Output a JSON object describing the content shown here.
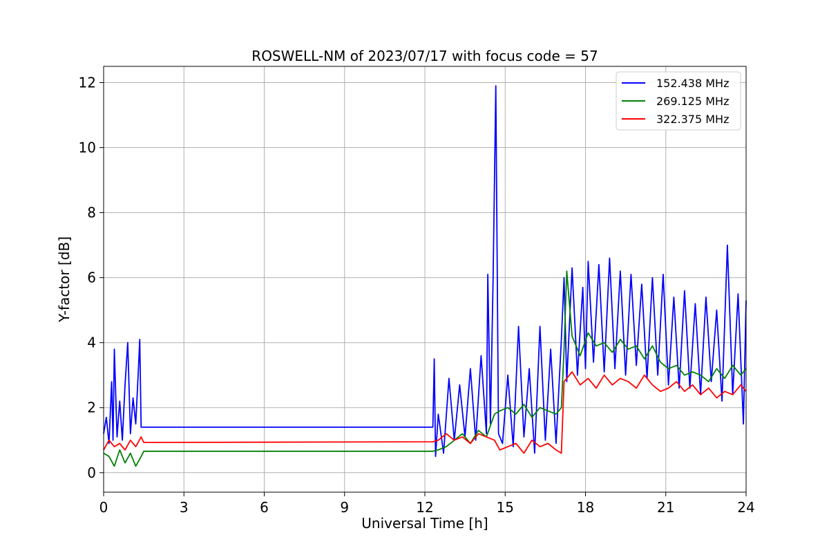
{
  "chart_data": {
    "type": "line",
    "title": "ROSWELL-NM of 2023/07/17 with focus code = 57",
    "xlabel": "Universal Time [h]",
    "ylabel": "Y-factor [dB]",
    "xlim": [
      0,
      24
    ],
    "ylim": [
      -0.6,
      12.5
    ],
    "xticks": [
      0,
      3,
      6,
      9,
      12,
      15,
      18,
      21,
      24
    ],
    "yticks": [
      0,
      2,
      4,
      6,
      8,
      10,
      12
    ],
    "grid": true,
    "legend_position": "top-right",
    "series": [
      {
        "name": "152.438 MHz",
        "color": "#0000ff",
        "x": [
          0,
          0.1,
          0.2,
          0.3,
          0.35,
          0.4,
          0.5,
          0.6,
          0.7,
          0.8,
          0.9,
          1.0,
          1.1,
          1.2,
          1.3,
          1.35,
          1.4,
          1.5,
          12.3,
          12.35,
          12.4,
          12.5,
          12.7,
          12.9,
          13.1,
          13.3,
          13.5,
          13.7,
          13.9,
          14.1,
          14.3,
          14.35,
          14.45,
          14.55,
          14.65,
          14.75,
          14.9,
          15.1,
          15.3,
          15.5,
          15.7,
          15.9,
          16.1,
          16.3,
          16.5,
          16.7,
          16.9,
          17.1,
          17.2,
          17.3,
          17.5,
          17.7,
          17.9,
          18.0,
          18.1,
          18.3,
          18.5,
          18.7,
          18.9,
          19.1,
          19.3,
          19.5,
          19.7,
          19.9,
          20.1,
          20.3,
          20.5,
          20.7,
          20.9,
          21.1,
          21.3,
          21.5,
          21.7,
          21.9,
          22.1,
          22.3,
          22.5,
          22.7,
          22.9,
          23.1,
          23.3,
          23.5,
          23.7,
          23.9,
          24.0
        ],
        "y": [
          1.2,
          1.7,
          0.9,
          2.8,
          1.0,
          3.8,
          1.1,
          2.2,
          1.0,
          2.7,
          4.0,
          1.2,
          2.3,
          1.5,
          3.2,
          4.1,
          1.4,
          1.4,
          1.4,
          3.5,
          0.5,
          1.8,
          0.6,
          2.9,
          1.0,
          2.7,
          1.1,
          3.2,
          1.0,
          3.6,
          1.2,
          6.1,
          1.5,
          6.0,
          11.9,
          1.2,
          0.9,
          3.0,
          0.8,
          4.5,
          1.1,
          3.2,
          0.6,
          4.5,
          1.0,
          3.8,
          0.9,
          4.1,
          6.0,
          2.8,
          6.3,
          3.0,
          5.7,
          3.2,
          6.5,
          3.4,
          6.4,
          3.1,
          6.6,
          3.2,
          6.2,
          3.0,
          6.1,
          3.3,
          5.8,
          2.9,
          6.0,
          3.0,
          6.1,
          2.7,
          5.4,
          2.6,
          5.6,
          2.6,
          5.2,
          2.4,
          5.4,
          2.8,
          5.0,
          2.2,
          7.0,
          2.4,
          5.5,
          1.5,
          5.3
        ]
      },
      {
        "name": "269.125 MHz",
        "color": "#008000",
        "x": [
          0,
          0.2,
          0.4,
          0.6,
          0.8,
          1.0,
          1.2,
          1.4,
          1.5,
          12.3,
          12.5,
          12.8,
          13.1,
          13.4,
          13.7,
          14.0,
          14.3,
          14.6,
          14.8,
          15.1,
          15.4,
          15.7,
          16.0,
          16.3,
          16.6,
          16.9,
          17.1,
          17.2,
          17.3,
          17.5,
          17.8,
          18.1,
          18.4,
          18.7,
          19.0,
          19.3,
          19.6,
          19.9,
          20.2,
          20.5,
          20.8,
          21.1,
          21.4,
          21.7,
          22.0,
          22.3,
          22.6,
          22.9,
          23.2,
          23.5,
          23.8,
          24.0
        ],
        "y": [
          0.6,
          0.5,
          0.2,
          0.7,
          0.3,
          0.6,
          0.2,
          0.5,
          0.66,
          0.66,
          0.7,
          0.8,
          1.0,
          1.2,
          0.9,
          1.3,
          1.1,
          1.8,
          1.9,
          2.0,
          1.8,
          2.1,
          1.7,
          2.0,
          1.9,
          1.8,
          2.0,
          3.8,
          6.2,
          4.2,
          3.6,
          4.3,
          3.9,
          4.0,
          3.7,
          4.1,
          3.8,
          3.9,
          3.5,
          3.9,
          3.4,
          3.2,
          3.3,
          3.0,
          3.1,
          3.0,
          2.8,
          3.2,
          2.9,
          3.3,
          3.0,
          3.2
        ]
      },
      {
        "name": "322.375 MHz",
        "color": "#ff0000",
        "x": [
          0,
          0.2,
          0.4,
          0.6,
          0.8,
          1.0,
          1.2,
          1.4,
          1.5,
          12.3,
          12.5,
          12.8,
          13.1,
          13.4,
          13.7,
          14.0,
          14.3,
          14.6,
          14.8,
          15.1,
          15.4,
          15.7,
          16.0,
          16.3,
          16.6,
          16.9,
          17.1,
          17.2,
          17.5,
          17.8,
          18.1,
          18.4,
          18.7,
          19.0,
          19.3,
          19.6,
          19.9,
          20.2,
          20.5,
          20.8,
          21.1,
          21.4,
          21.7,
          22.0,
          22.3,
          22.6,
          22.9,
          23.2,
          23.5,
          23.8,
          24.0
        ],
        "y": [
          0.7,
          1.0,
          0.8,
          0.9,
          0.7,
          1.0,
          0.8,
          1.1,
          0.93,
          0.95,
          1.0,
          1.2,
          1.0,
          1.1,
          0.9,
          1.2,
          1.1,
          1.0,
          0.7,
          0.8,
          0.9,
          0.6,
          1.0,
          0.8,
          0.9,
          0.7,
          0.6,
          2.8,
          3.1,
          2.7,
          2.9,
          2.6,
          3.0,
          2.7,
          2.9,
          2.8,
          2.6,
          3.0,
          2.7,
          2.5,
          2.6,
          2.8,
          2.5,
          2.7,
          2.4,
          2.6,
          2.3,
          2.5,
          2.4,
          2.7,
          2.5
        ]
      }
    ]
  }
}
